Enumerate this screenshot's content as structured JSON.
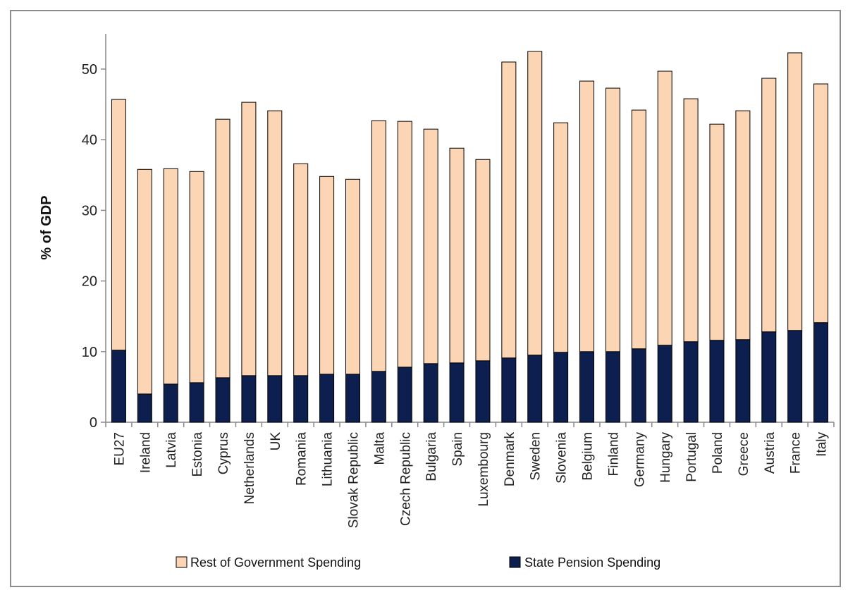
{
  "chart_data": {
    "type": "bar",
    "stacked": true,
    "ylabel": "% of GDP",
    "ylim": [
      0,
      55
    ],
    "yticks": [
      0,
      10,
      20,
      30,
      40,
      50
    ],
    "grid": false,
    "legend_position": "bottom",
    "categories": [
      "EU27",
      "Ireland",
      "Latvia",
      "Estonia",
      "Cyprus",
      "Netherlands",
      "UK",
      "Romania",
      "Lithuania",
      "Slovak Republic",
      "Malta",
      "Czech Republic",
      "Bulgaria",
      "Spain",
      "Luxembourg",
      "Denmark",
      "Sweden",
      "Slovenia",
      "Belgium",
      "Finland",
      "Germany",
      "Hungary",
      "Portugal",
      "Poland",
      "Greece",
      "Austria",
      "France",
      "Italy"
    ],
    "series": [
      {
        "name": "State Pension Spending",
        "color": "#0d1f4e",
        "values": [
          10.2,
          4.0,
          5.4,
          5.6,
          6.3,
          6.6,
          6.6,
          6.6,
          6.8,
          6.8,
          7.2,
          7.8,
          8.3,
          8.4,
          8.7,
          9.1,
          9.5,
          9.9,
          10.0,
          10.0,
          10.4,
          10.9,
          11.4,
          11.6,
          11.7,
          12.8,
          13.0,
          14.1
        ]
      },
      {
        "name": "Rest of Government Spending",
        "color": "#fcd5b4",
        "values": [
          35.5,
          31.8,
          30.5,
          29.9,
          36.6,
          38.7,
          37.5,
          30.0,
          28.0,
          27.6,
          35.5,
          34.8,
          33.2,
          30.4,
          28.5,
          41.9,
          43.0,
          32.5,
          38.3,
          37.3,
          33.8,
          38.8,
          34.4,
          30.6,
          32.4,
          35.9,
          39.3,
          33.8
        ]
      }
    ],
    "legend": [
      {
        "label": "Rest of Government Spending",
        "color": "#fcd5b4"
      },
      {
        "label": "State Pension Spending",
        "color": "#0d1f4e"
      }
    ]
  }
}
